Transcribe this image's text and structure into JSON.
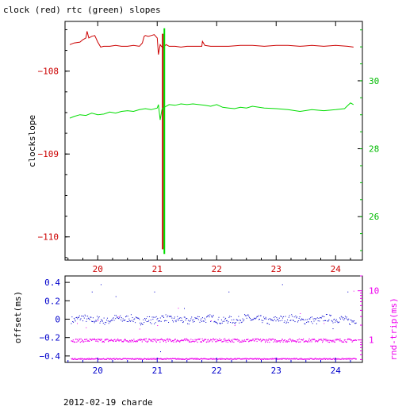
{
  "title": "clock (red) rtc (green) slopes",
  "footer": "2012-02-19 charde",
  "colors": {
    "clock": "#cc0000",
    "rtc": "#00dd00",
    "offset": "#0000cc",
    "rndtrip": "#ee00ee",
    "axis": "#000000"
  },
  "chart_data": [
    {
      "type": "line",
      "title": "clock (red) rtc (green) slopes",
      "ylabel": "clockslope",
      "y2label": "",
      "xlim": [
        19.45,
        24.45
      ],
      "xticks": [
        "20",
        "21",
        "22",
        "23",
        "24"
      ],
      "ylim": [
        -110.28,
        -107.4
      ],
      "yticks": [
        "-108",
        "-109",
        "-110"
      ],
      "y2lim": [
        24.72,
        31.75
      ],
      "y2ticks": [
        "30",
        "28",
        "26"
      ],
      "series": [
        {
          "name": "clock",
          "axis": "left",
          "color": "#cc0000",
          "x": [
            19.53,
            19.6,
            19.7,
            19.75,
            19.8,
            19.82,
            19.85,
            19.9,
            19.95,
            20.0,
            20.05,
            20.1,
            20.2,
            20.3,
            20.4,
            20.5,
            20.6,
            20.7,
            20.75,
            20.78,
            20.8,
            20.85,
            20.9,
            20.95,
            21.0,
            21.02,
            21.05,
            21.07,
            21.1,
            21.12,
            21.15,
            21.2,
            21.3,
            21.4,
            21.5,
            21.6,
            21.7,
            21.75,
            21.76,
            21.8,
            21.9,
            22.0,
            22.2,
            22.4,
            22.6,
            22.8,
            23.0,
            23.2,
            23.4,
            23.6,
            23.8,
            24.0,
            24.2,
            24.3
          ],
          "y": [
            -107.68,
            -107.66,
            -107.65,
            -107.62,
            -107.6,
            -107.52,
            -107.6,
            -107.58,
            -107.57,
            -107.65,
            -107.71,
            -107.7,
            -107.7,
            -107.69,
            -107.7,
            -107.7,
            -107.69,
            -107.7,
            -107.66,
            -107.58,
            -107.57,
            -107.58,
            -107.57,
            -107.56,
            -107.6,
            -107.8,
            -107.68,
            -107.7,
            -107.72,
            -107.7,
            -107.68,
            -107.7,
            -107.7,
            -107.71,
            -107.7,
            -107.7,
            -107.7,
            -107.7,
            -107.64,
            -107.69,
            -107.7,
            -107.7,
            -107.7,
            -107.69,
            -107.69,
            -107.7,
            -107.69,
            -107.69,
            -107.7,
            -107.69,
            -107.7,
            -107.69,
            -107.7,
            -107.71
          ],
          "spike": {
            "x": 21.1,
            "y": [
              -107.55,
              -110.15
            ]
          }
        },
        {
          "name": "rtc",
          "axis": "right",
          "color": "#00dd00",
          "x": [
            19.53,
            19.6,
            19.7,
            19.8,
            19.9,
            20.0,
            20.1,
            20.2,
            20.3,
            20.4,
            20.5,
            20.6,
            20.7,
            20.8,
            20.9,
            21.0,
            21.02,
            21.05,
            21.08,
            21.1,
            21.15,
            21.2,
            21.3,
            21.4,
            21.5,
            21.6,
            21.7,
            21.8,
            21.9,
            22.0,
            22.1,
            22.2,
            22.3,
            22.4,
            22.5,
            22.6,
            22.8,
            23.0,
            23.2,
            23.4,
            23.6,
            23.8,
            24.0,
            24.15,
            24.25,
            24.3
          ],
          "y": [
            28.9,
            28.95,
            29.0,
            28.98,
            29.05,
            29.0,
            29.02,
            29.08,
            29.05,
            29.1,
            29.12,
            29.1,
            29.15,
            29.18,
            29.15,
            29.2,
            29.3,
            28.85,
            29.15,
            29.2,
            29.25,
            29.3,
            29.28,
            29.32,
            29.3,
            29.32,
            29.3,
            29.28,
            29.25,
            29.3,
            29.22,
            29.2,
            29.18,
            29.22,
            29.2,
            29.25,
            29.2,
            29.18,
            29.15,
            29.1,
            29.15,
            29.12,
            29.15,
            29.18,
            29.35,
            29.3
          ],
          "spike": {
            "x": 21.1,
            "y": [
              31.55,
              24.9
            ]
          }
        }
      ]
    },
    {
      "type": "scatter",
      "ylabel": "offset(ms)",
      "y2label": "rnd-trip(ms)",
      "xlim": [
        19.45,
        24.45
      ],
      "xticks": [
        "20",
        "21",
        "22",
        "23",
        "24"
      ],
      "ylim": [
        -0.47,
        0.47
      ],
      "yticks": [
        "0.4",
        "0.2",
        "0",
        "-0.2",
        "-0.4"
      ],
      "y2lim": [
        0.35,
        20
      ],
      "y2scale": "log",
      "y2ticks": [
        "10",
        "1"
      ],
      "series": [
        {
          "name": "offset",
          "axis": "left",
          "color": "#0000cc",
          "band": {
            "x_range": [
              19.55,
              24.35
            ],
            "center": 0.0,
            "spread": 0.04
          },
          "outliers": {
            "x": [
              19.9,
              20.05,
              20.3,
              20.95,
              21.05,
              21.45,
              22.2,
              23.1,
              23.95,
              24.2
            ],
            "y": [
              0.3,
              0.38,
              0.25,
              0.3,
              -0.35,
              0.12,
              0.3,
              0.38,
              -0.1,
              0.3
            ]
          }
        },
        {
          "name": "rnd-trip",
          "axis": "right",
          "color": "#ee00ee",
          "bands": [
            {
              "x_range": [
                19.55,
                24.35
              ],
              "center": 1.0,
              "spread": 0.08
            },
            {
              "x_range": [
                19.55,
                24.35
              ],
              "center": 0.42,
              "spread": 0.025
            }
          ],
          "outliers": {
            "x": [
              19.65,
              19.8,
              20.0,
              20.35,
              20.7,
              21.0,
              21.35,
              21.9,
              22.3,
              23.4,
              23.8,
              24.3
            ],
            "y": [
              2.2,
              1.8,
              2.5,
              3.0,
              1.7,
              2.0,
              4.5,
              2.5,
              2.0,
              3.5,
              2.2,
              10
            ]
          }
        }
      ]
    }
  ]
}
